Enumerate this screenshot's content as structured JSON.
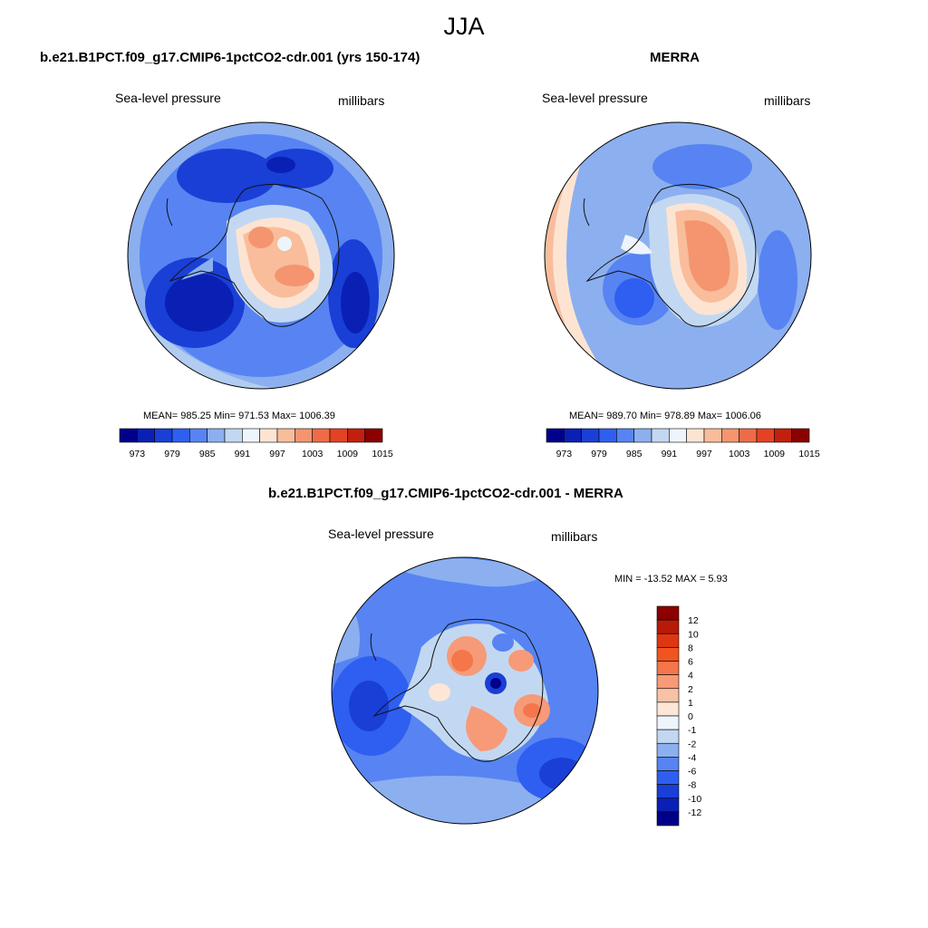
{
  "figure_title": "JJA",
  "panels": [
    {
      "title": "b.e21.B1PCT.f09_g17.CMIP6-1pctCO2-cdr.001 (yrs 150-174)",
      "left_label": "Sea-level pressure",
      "right_label": "millibars",
      "stats": "MEAN= 985.25  Min= 971.53  Max= 1006.39"
    },
    {
      "title": "MERRA",
      "left_label": "Sea-level pressure",
      "right_label": "millibars",
      "stats": "MEAN= 989.70  Min= 978.89  Max= 1006.06"
    },
    {
      "title": "b.e21.B1PCT.f09_g17.CMIP6-1pctCO2-cdr.001 - MERRA",
      "left_label": "Sea-level pressure",
      "right_label": "millibars",
      "stats": "MIN = -13.52 MAX =   5.93"
    }
  ],
  "colorbar_abs": {
    "labels": [
      "973",
      "979",
      "985",
      "991",
      "997",
      "1003",
      "1009",
      "1015"
    ],
    "colors": [
      "#00008a",
      "#0a20b4",
      "#1a3fd6",
      "#2f5ff0",
      "#5784f2",
      "#8cafef",
      "#c2d8f2",
      "#eef4fb",
      "#fde4d2",
      "#f9bd9c",
      "#f49570",
      "#ee6b48",
      "#e44224",
      "#c2200e",
      "#8b0000"
    ]
  },
  "colorbar_diff": {
    "labels": [
      "12",
      "10",
      "8",
      "6",
      "4",
      "2",
      "1",
      "0",
      "-1",
      "-2",
      "-4",
      "-6",
      "-8",
      "-10",
      "-12"
    ],
    "colors": [
      "#8b0000",
      "#b81a08",
      "#de3612",
      "#f25420",
      "#f4764a",
      "#f69a78",
      "#f8c2a6",
      "#fde6d6",
      "#eef4fb",
      "#c2d8f2",
      "#8cafef",
      "#5784f2",
      "#2f5ff0",
      "#1a3fd6",
      "#0a20b4",
      "#00008a"
    ]
  }
}
